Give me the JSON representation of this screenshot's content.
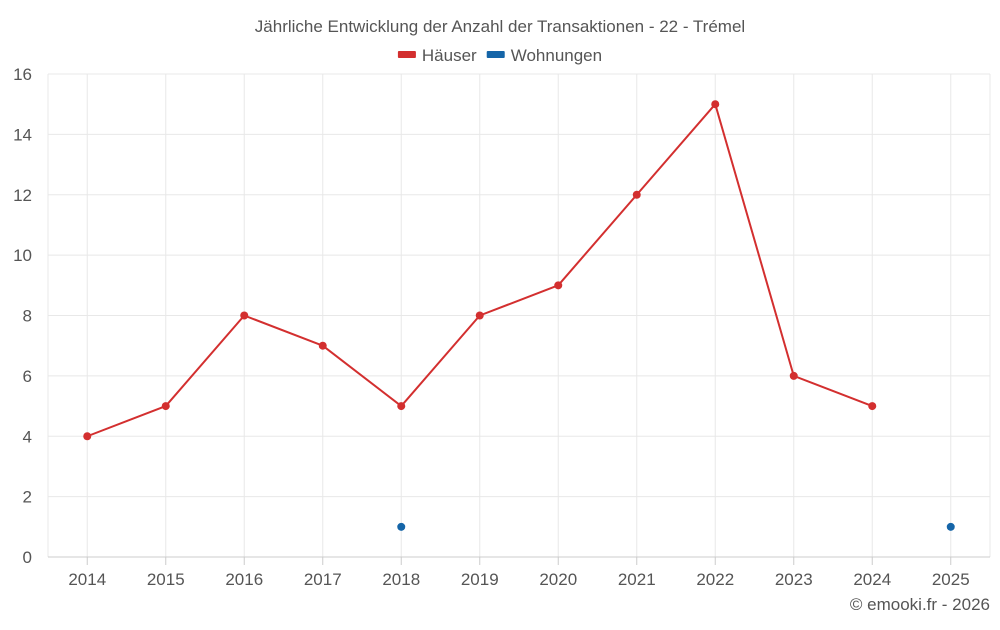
{
  "chart_data": {
    "type": "line",
    "title": "Jährliche Entwicklung der Anzahl der Transaktionen - 22 - Trémel",
    "xlabel": "",
    "ylabel": "",
    "categories": [
      "2014",
      "2015",
      "2016",
      "2017",
      "2018",
      "2019",
      "2020",
      "2021",
      "2022",
      "2023",
      "2024",
      "2025"
    ],
    "ylim": [
      0,
      16
    ],
    "yticks": [
      0,
      2,
      4,
      6,
      8,
      10,
      12,
      14,
      16
    ],
    "grid": true,
    "legend_position": "top-center",
    "series": [
      {
        "name": "Häuser",
        "color": "#d32f2f",
        "values": [
          4,
          5,
          8,
          7,
          5,
          8,
          9,
          12,
          15,
          6,
          5,
          null
        ]
      },
      {
        "name": "Wohnungen",
        "color": "#1565a8",
        "values": [
          null,
          null,
          null,
          null,
          1,
          null,
          null,
          null,
          null,
          null,
          null,
          1
        ]
      }
    ]
  },
  "credit": "© emooki.fr - 2026"
}
